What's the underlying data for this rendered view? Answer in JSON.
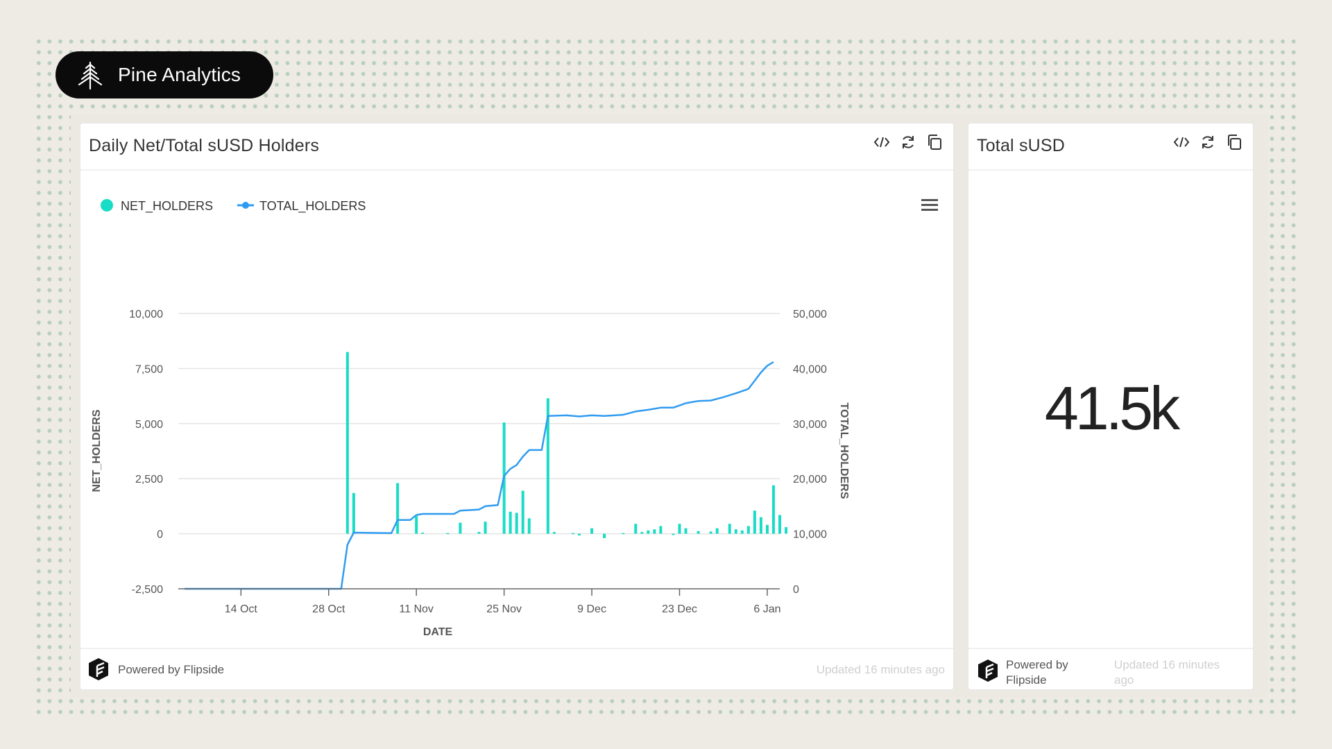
{
  "brand": {
    "name": "Pine Analytics"
  },
  "cards": {
    "chart": {
      "title": "Daily Net/Total sUSD Holders",
      "powered_by": "Powered by Flipside",
      "updated": "Updated 16 minutes ago",
      "tools": [
        "code-icon",
        "refresh-icon",
        "copy-icon"
      ]
    },
    "kpi": {
      "title": "Total sUSD",
      "value": "41.5k",
      "powered_by": "Powered by Flipside",
      "updated": "Updated 16 minutes ago",
      "tools": [
        "code-icon",
        "refresh-icon",
        "copy-icon"
      ]
    }
  },
  "colors": {
    "net_holders": "#19dcc6",
    "total_holders": "#2f9bf0"
  },
  "chart_data": {
    "type": "bar",
    "title": "",
    "xlabel": "DATE",
    "ylabel": "NET_HOLDERS",
    "y2label": "TOTAL_HOLDERS",
    "ylim": [
      -2500,
      10000
    ],
    "y2lim": [
      0,
      50000
    ],
    "y_ticks": [
      "10,000",
      "7,500",
      "5,000",
      "2,500",
      "0",
      "-2,500"
    ],
    "y_tick_values": [
      10000,
      7500,
      5000,
      2500,
      0,
      -2500
    ],
    "y2_ticks": [
      "50,000",
      "40,000",
      "30,000",
      "20,000",
      "10,000",
      "0"
    ],
    "y2_tick_values": [
      50000,
      40000,
      30000,
      20000,
      10000,
      0
    ],
    "xlim": [
      "2024-10-04",
      "2025-01-08"
    ],
    "x_ticks": [
      {
        "date": "2024-10-14",
        "label": "14 Oct"
      },
      {
        "date": "2024-10-28",
        "label": "28 Oct"
      },
      {
        "date": "2024-11-11",
        "label": "11 Nov"
      },
      {
        "date": "2024-11-25",
        "label": "25 Nov"
      },
      {
        "date": "2024-12-09",
        "label": "9 Dec"
      },
      {
        "date": "2024-12-23",
        "label": "23 Dec"
      },
      {
        "date": "2025-01-06",
        "label": "6 Jan"
      }
    ],
    "legend": {
      "placement": "top-left"
    },
    "grid": true,
    "series": [
      {
        "name": "NET_HOLDERS",
        "type": "bar",
        "axis": "left",
        "points": [
          [
            "2024-10-31",
            8250
          ],
          [
            "2024-11-01",
            1850
          ],
          [
            "2024-11-08",
            2300
          ],
          [
            "2024-11-11",
            800
          ],
          [
            "2024-11-12",
            50
          ],
          [
            "2024-11-16",
            30
          ],
          [
            "2024-11-18",
            500
          ],
          [
            "2024-11-21",
            80
          ],
          [
            "2024-11-22",
            550
          ],
          [
            "2024-11-25",
            5050
          ],
          [
            "2024-11-26",
            1000
          ],
          [
            "2024-11-27",
            950
          ],
          [
            "2024-11-28",
            1950
          ],
          [
            "2024-11-29",
            700
          ],
          [
            "2024-12-02",
            6150
          ],
          [
            "2024-12-03",
            80
          ],
          [
            "2024-12-06",
            30
          ],
          [
            "2024-12-07",
            -80
          ],
          [
            "2024-12-09",
            250
          ],
          [
            "2024-12-11",
            -200
          ],
          [
            "2024-12-14",
            30
          ],
          [
            "2024-12-16",
            450
          ],
          [
            "2024-12-17",
            80
          ],
          [
            "2024-12-18",
            150
          ],
          [
            "2024-12-19",
            200
          ],
          [
            "2024-12-20",
            350
          ],
          [
            "2024-12-22",
            -60
          ],
          [
            "2024-12-23",
            450
          ],
          [
            "2024-12-24",
            250
          ],
          [
            "2024-12-26",
            120
          ],
          [
            "2024-12-28",
            100
          ],
          [
            "2024-12-29",
            250
          ],
          [
            "2024-12-31",
            450
          ],
          [
            "2025-01-01",
            200
          ],
          [
            "2025-01-02",
            150
          ],
          [
            "2025-01-03",
            350
          ],
          [
            "2025-01-04",
            1050
          ],
          [
            "2025-01-05",
            750
          ],
          [
            "2025-01-06",
            400
          ],
          [
            "2025-01-07",
            2200
          ],
          [
            "2025-01-08",
            850
          ],
          [
            "2025-01-09",
            300
          ]
        ]
      },
      {
        "name": "TOTAL_HOLDERS",
        "type": "line",
        "axis": "right",
        "points": [
          [
            "2024-10-05",
            0
          ],
          [
            "2024-10-30",
            0
          ],
          [
            "2024-10-31",
            8000
          ],
          [
            "2024-11-01",
            10200
          ],
          [
            "2024-11-07",
            10100
          ],
          [
            "2024-11-08",
            12500
          ],
          [
            "2024-11-10",
            12500
          ],
          [
            "2024-11-11",
            13400
          ],
          [
            "2024-11-12",
            13600
          ],
          [
            "2024-11-17",
            13600
          ],
          [
            "2024-11-18",
            14200
          ],
          [
            "2024-11-21",
            14400
          ],
          [
            "2024-11-22",
            15000
          ],
          [
            "2024-11-24",
            15200
          ],
          [
            "2024-11-25",
            20500
          ],
          [
            "2024-11-26",
            21800
          ],
          [
            "2024-11-27",
            22500
          ],
          [
            "2024-11-28",
            24000
          ],
          [
            "2024-11-29",
            25200
          ],
          [
            "2024-12-01",
            25200
          ],
          [
            "2024-12-02",
            31400
          ],
          [
            "2024-12-05",
            31500
          ],
          [
            "2024-12-07",
            31300
          ],
          [
            "2024-12-09",
            31500
          ],
          [
            "2024-12-11",
            31400
          ],
          [
            "2024-12-14",
            31600
          ],
          [
            "2024-12-16",
            32200
          ],
          [
            "2024-12-18",
            32500
          ],
          [
            "2024-12-20",
            32900
          ],
          [
            "2024-12-22",
            32900
          ],
          [
            "2024-12-24",
            33700
          ],
          [
            "2024-12-26",
            34100
          ],
          [
            "2024-12-28",
            34200
          ],
          [
            "2024-12-30",
            34800
          ],
          [
            "2025-01-01",
            35500
          ],
          [
            "2025-01-03",
            36300
          ],
          [
            "2025-01-04",
            37800
          ],
          [
            "2025-01-05",
            39300
          ],
          [
            "2025-01-06",
            40500
          ],
          [
            "2025-01-07",
            41200
          ]
        ]
      }
    ]
  }
}
